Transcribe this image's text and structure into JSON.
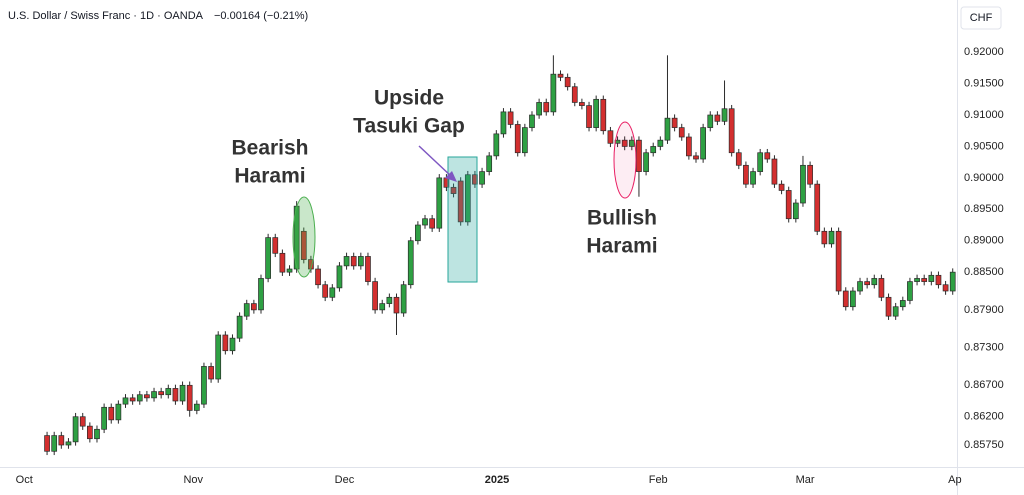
{
  "chart_data": {
    "type": "candlestick",
    "title": "U.S. Dollar / Swiss Franc · 1D · OANDA",
    "change": "−0.00164 (−0.21%)",
    "currency": "CHF",
    "up_color": "#2ea043",
    "down_color": "#d32f2f",
    "outline_color": "#2b2b2b",
    "open": [
      0.859,
      0.8565,
      0.859,
      0.8575,
      0.858,
      0.862,
      0.8605,
      0.8585,
      0.86,
      0.8635,
      0.8615,
      0.864,
      0.865,
      0.8645,
      0.8655,
      0.865,
      0.866,
      0.8655,
      0.8665,
      0.8645,
      0.867,
      0.863,
      0.864,
      0.87,
      0.868,
      0.875,
      0.8725,
      0.8745,
      0.878,
      0.88,
      0.879,
      0.884,
      0.8905,
      0.888,
      0.885,
      0.8855,
      0.8915,
      0.887,
      0.8855,
      0.883,
      0.881,
      0.8825,
      0.886,
      0.8875,
      0.886,
      0.8875,
      0.8835,
      0.879,
      0.88,
      0.881,
      0.8785,
      0.883,
      0.89,
      0.8925,
      0.8935,
      0.892,
      0.9,
      0.8985,
      0.8995,
      0.893,
      0.9005,
      0.899,
      0.901,
      0.9035,
      0.907,
      0.9105,
      0.9085,
      0.904,
      0.908,
      0.91,
      0.912,
      0.9105,
      0.9165,
      0.916,
      0.9145,
      0.912,
      0.9115,
      0.908,
      0.9125,
      0.9075,
      0.9055,
      0.906,
      0.905,
      0.906,
      0.901,
      0.904,
      0.905,
      0.906,
      0.9095,
      0.908,
      0.9065,
      0.9035,
      0.903,
      0.908,
      0.91,
      0.909,
      0.911,
      0.904,
      0.902,
      0.899,
      0.901,
      0.904,
      0.903,
      0.899,
      0.898,
      0.8935,
      0.896,
      0.902,
      0.899,
      0.8915,
      0.8895,
      0.8915,
      0.882,
      0.8795,
      0.882,
      0.8835,
      0.883,
      0.884,
      0.881,
      0.878,
      0.8795,
      0.8805,
      0.8835,
      0.884,
      0.8835,
      0.8845,
      0.883,
      0.882
    ],
    "high": [
      0.8596,
      0.8596,
      0.8596,
      0.8586,
      0.8626,
      0.8626,
      0.8611,
      0.8606,
      0.8641,
      0.8641,
      0.8646,
      0.8656,
      0.8656,
      0.8661,
      0.8661,
      0.8666,
      0.8666,
      0.8671,
      0.8671,
      0.8676,
      0.8676,
      0.8646,
      0.8706,
      0.8706,
      0.8756,
      0.8756,
      0.8751,
      0.8786,
      0.8806,
      0.8806,
      0.8846,
      0.8911,
      0.8911,
      0.8886,
      0.8861,
      0.8963,
      0.8921,
      0.8876,
      0.8861,
      0.8836,
      0.8831,
      0.8866,
      0.8881,
      0.8881,
      0.8881,
      0.8881,
      0.8841,
      0.8806,
      0.8816,
      0.8816,
      0.8836,
      0.8906,
      0.8931,
      0.8941,
      0.8941,
      0.9006,
      0.9006,
      0.8991,
      0.9001,
      0.9011,
      0.9011,
      0.9016,
      0.9041,
      0.9076,
      0.9111,
      0.9111,
      0.9091,
      0.9086,
      0.9106,
      0.9126,
      0.9126,
      0.9195,
      0.9171,
      0.9166,
      0.9151,
      0.9126,
      0.9121,
      0.9131,
      0.9131,
      0.9081,
      0.9066,
      0.9066,
      0.9066,
      0.9066,
      0.9046,
      0.9056,
      0.9066,
      0.9195,
      0.9101,
      0.9086,
      0.9071,
      0.9041,
      0.9086,
      0.9106,
      0.9106,
      0.9155,
      0.9116,
      0.9046,
      0.9026,
      0.9016,
      0.9046,
      0.9046,
      0.9036,
      0.8996,
      0.8986,
      0.8966,
      0.9035,
      0.9026,
      0.8996,
      0.8921,
      0.8921,
      0.8921,
      0.8826,
      0.8826,
      0.8841,
      0.8841,
      0.8846,
      0.8846,
      0.8816,
      0.8801,
      0.8811,
      0.8841,
      0.8846,
      0.8846,
      0.8851,
      0.8851,
      0.8836,
      0.8856
    ],
    "low": [
      0.8559,
      0.8559,
      0.8569,
      0.8569,
      0.8574,
      0.8599,
      0.8579,
      0.8579,
      0.8594,
      0.8609,
      0.8609,
      0.8634,
      0.8639,
      0.8639,
      0.8644,
      0.8644,
      0.8649,
      0.8649,
      0.8639,
      0.8639,
      0.862,
      0.8624,
      0.8634,
      0.8674,
      0.8674,
      0.8719,
      0.8719,
      0.8739,
      0.8774,
      0.8784,
      0.8784,
      0.8834,
      0.8874,
      0.8844,
      0.8844,
      0.8849,
      0.8864,
      0.8849,
      0.8824,
      0.8804,
      0.8804,
      0.8819,
      0.8854,
      0.8854,
      0.8854,
      0.8829,
      0.8784,
      0.8784,
      0.8794,
      0.875,
      0.8779,
      0.8824,
      0.8894,
      0.8919,
      0.8914,
      0.8914,
      0.8979,
      0.8969,
      0.8924,
      0.8924,
      0.8984,
      0.8984,
      0.9004,
      0.9029,
      0.9064,
      0.9079,
      0.9034,
      0.9034,
      0.9074,
      0.9094,
      0.9099,
      0.9099,
      0.9154,
      0.9139,
      0.9114,
      0.9109,
      0.9074,
      0.9074,
      0.9069,
      0.9049,
      0.9049,
      0.9044,
      0.9044,
      0.897,
      0.9004,
      0.9034,
      0.9044,
      0.9054,
      0.9074,
      0.9059,
      0.9029,
      0.9024,
      0.9024,
      0.9074,
      0.9084,
      0.9084,
      0.9034,
      0.9014,
      0.8984,
      0.8984,
      0.9004,
      0.9024,
      0.8984,
      0.8974,
      0.8929,
      0.8929,
      0.8954,
      0.8984,
      0.8909,
      0.8889,
      0.8889,
      0.8814,
      0.8789,
      0.8789,
      0.8814,
      0.8824,
      0.8824,
      0.8804,
      0.8774,
      0.8774,
      0.8789,
      0.8799,
      0.8829,
      0.8829,
      0.8829,
      0.8824,
      0.8814,
      0.8814
    ],
    "close": [
      0.8565,
      0.859,
      0.8575,
      0.858,
      0.862,
      0.8605,
      0.8585,
      0.86,
      0.8635,
      0.8615,
      0.864,
      0.865,
      0.8645,
      0.8655,
      0.865,
      0.866,
      0.8655,
      0.8665,
      0.8645,
      0.867,
      0.863,
      0.864,
      0.87,
      0.868,
      0.875,
      0.8725,
      0.8745,
      0.878,
      0.88,
      0.879,
      0.884,
      0.8905,
      0.888,
      0.885,
      0.8855,
      0.8955,
      0.887,
      0.8855,
      0.883,
      0.881,
      0.8825,
      0.886,
      0.8875,
      0.886,
      0.8875,
      0.8835,
      0.879,
      0.88,
      0.881,
      0.8785,
      0.883,
      0.89,
      0.8925,
      0.8935,
      0.892,
      0.9,
      0.8985,
      0.8975,
      0.893,
      0.9005,
      0.899,
      0.901,
      0.9035,
      0.907,
      0.9105,
      0.9085,
      0.904,
      0.908,
      0.91,
      0.912,
      0.9105,
      0.9165,
      0.916,
      0.9145,
      0.912,
      0.9115,
      0.908,
      0.9125,
      0.9075,
      0.9055,
      0.906,
      0.905,
      0.906,
      0.901,
      0.904,
      0.905,
      0.906,
      0.9095,
      0.908,
      0.9065,
      0.9035,
      0.903,
      0.908,
      0.91,
      0.909,
      0.911,
      0.904,
      0.902,
      0.899,
      0.901,
      0.904,
      0.903,
      0.899,
      0.898,
      0.8935,
      0.896,
      0.902,
      0.899,
      0.8915,
      0.8895,
      0.8915,
      0.882,
      0.8795,
      0.882,
      0.8835,
      0.883,
      0.884,
      0.881,
      0.878,
      0.8795,
      0.8805,
      0.8835,
      0.884,
      0.8835,
      0.8845,
      0.883,
      0.882,
      0.885
    ],
    "ylim": [
      0.854,
      0.9283
    ],
    "yticks": [
      {
        "value": 0.92,
        "label": "0.92000"
      },
      {
        "value": 0.915,
        "label": "0.91500"
      },
      {
        "value": 0.91,
        "label": "0.91000"
      },
      {
        "value": 0.905,
        "label": "0.90500"
      },
      {
        "value": 0.9,
        "label": "0.90000"
      },
      {
        "value": 0.895,
        "label": "0.89500"
      },
      {
        "value": 0.89,
        "label": "0.89000"
      },
      {
        "value": 0.885,
        "label": "0.88500"
      },
      {
        "value": 0.879,
        "label": "0.87900"
      },
      {
        "value": 0.873,
        "label": "0.87300"
      },
      {
        "value": 0.867,
        "label": "0.86700"
      },
      {
        "value": 0.862,
        "label": "0.86200"
      },
      {
        "value": 0.8575,
        "label": "0.85750"
      }
    ],
    "xlim": [
      -6.6,
      127.6
    ],
    "xticks": [
      {
        "value": -3.2,
        "label": "Oct"
      },
      {
        "value": 20.5,
        "label": "Nov"
      },
      {
        "value": 41.7,
        "label": "Dec"
      },
      {
        "value": 63.1,
        "label": "2025"
      },
      {
        "value": 85.7,
        "label": "Feb"
      },
      {
        "value": 106.3,
        "label": "Mar"
      },
      {
        "value": 127.3,
        "label": "Ap"
      }
    ],
    "annotations": [
      {
        "lines": [
          "Bearish",
          "Harami"
        ]
      },
      {
        "lines": [
          "Upside",
          "Tasuki Gap"
        ]
      },
      {
        "lines": [
          "Bullish",
          "Harami"
        ]
      }
    ]
  }
}
